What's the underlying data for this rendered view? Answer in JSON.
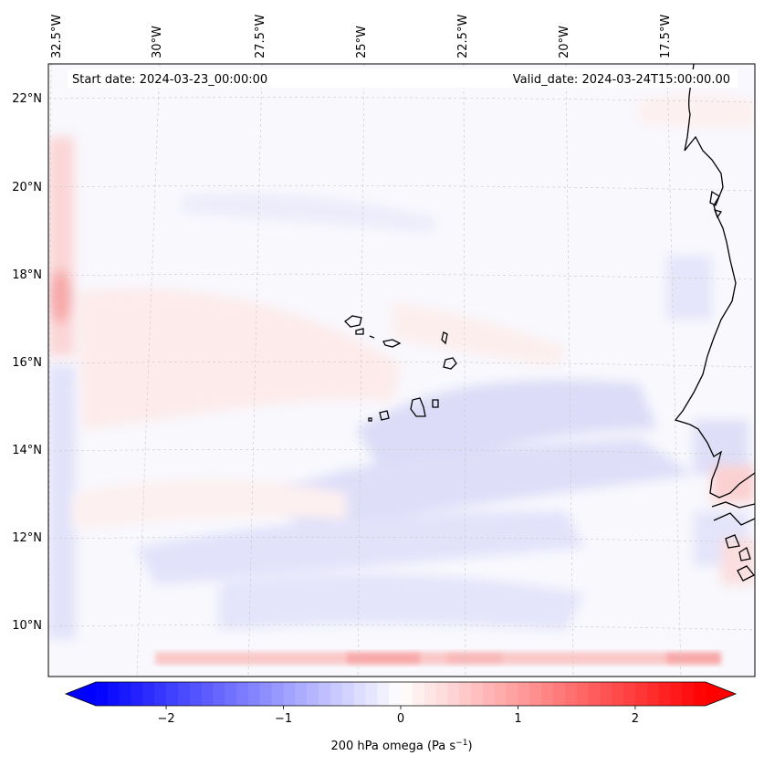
{
  "map": {
    "start_date_label": "Start date: 2024-03-23_00:00:00",
    "valid_date_label": "Valid_date: 2024-03-24T15:00:00.00",
    "lon_ticks": [
      "32.5°W",
      "30°W",
      "27.5°W",
      "25°W",
      "22.5°W",
      "20°W",
      "17.5°W"
    ],
    "lat_ticks": [
      "22°N",
      "20°N",
      "18°N",
      "16°N",
      "14°N",
      "12°N",
      "10°N"
    ],
    "extent": {
      "lon_min": -33.0,
      "lon_max": -15.5,
      "lat_min": 8.9,
      "lat_max": 22.8
    }
  },
  "colorbar": {
    "ticks": [
      "−2",
      "−1",
      "0",
      "1",
      "2"
    ],
    "tick_values": [
      -2,
      -1,
      0,
      1,
      2
    ],
    "range": [
      -2.6,
      2.6
    ],
    "label_main": "200 hPa omega (Pa s",
    "label_exp": "−1",
    "label_close": ")",
    "low_color": "#0000ff",
    "mid_color": "#ffffff",
    "high_color": "#ff0000"
  }
}
